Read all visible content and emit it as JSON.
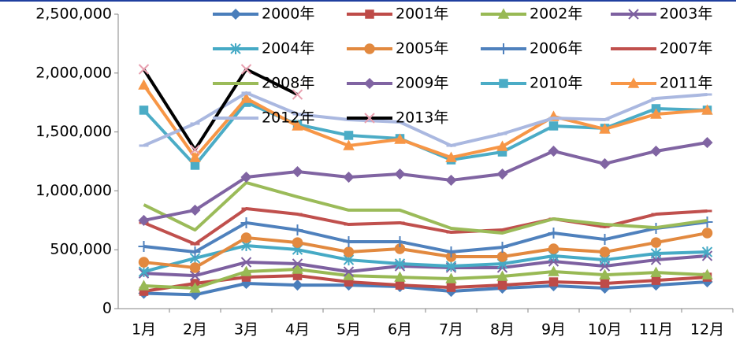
{
  "chart_data": {
    "type": "line",
    "categories": [
      "1月",
      "2月",
      "3月",
      "4月",
      "5月",
      "6月",
      "7月",
      "8月",
      "9月",
      "10月",
      "11月",
      "12月"
    ],
    "ylim": [
      0,
      2500000
    ],
    "yticks": [
      0,
      {
        "value": 500000,
        "label": "500,000"
      },
      {
        "value": 1000000,
        "label": "1,000,000"
      },
      {
        "value": 1500000,
        "label": "1,500,000"
      },
      {
        "value": 2000000,
        "label": "2,000,000"
      },
      {
        "value": 2500000,
        "label": "2,500,000"
      }
    ],
    "legend": "upper right",
    "series": [
      {
        "name": "2000年",
        "color": "#4a7ebb",
        "marker": "diamond",
        "values": [
          130000,
          118000,
          214000,
          200000,
          200000,
          187000,
          147000,
          174000,
          194000,
          174000,
          200000,
          227000
        ]
      },
      {
        "name": "2001年",
        "color": "#be4b48",
        "marker": "square",
        "values": [
          147000,
          214000,
          267000,
          280000,
          227000,
          200000,
          180000,
          200000,
          227000,
          214000,
          240000,
          267000
        ]
      },
      {
        "name": "2002年",
        "color": "#98b954",
        "marker": "triangle",
        "values": [
          194000,
          174000,
          314000,
          334000,
          280000,
          267000,
          254000,
          274000,
          314000,
          287000,
          307000,
          287000
        ]
      },
      {
        "name": "2003年",
        "color": "#7d60a0",
        "marker": "x",
        "values": [
          300000,
          280000,
          394000,
          381000,
          314000,
          361000,
          348000,
          348000,
          401000,
          361000,
          414000,
          448000
        ]
      },
      {
        "name": "2004年",
        "color": "#46aac5",
        "marker": "star",
        "values": [
          314000,
          428000,
          535000,
          501000,
          414000,
          381000,
          361000,
          381000,
          448000,
          414000,
          468000,
          481000
        ]
      },
      {
        "name": "2005年",
        "color": "#e2893f",
        "marker": "circle",
        "values": [
          394000,
          348000,
          602000,
          561000,
          481000,
          508000,
          441000,
          441000,
          508000,
          481000,
          561000,
          642000
        ]
      },
      {
        "name": "2006年",
        "color": "#4f81bd",
        "marker": "plus",
        "values": [
          528000,
          481000,
          729000,
          668000,
          568000,
          568000,
          481000,
          521000,
          642000,
          588000,
          682000,
          735000
        ]
      },
      {
        "name": "2007年",
        "color": "#c0504d",
        "marker": "dash",
        "values": [
          729000,
          548000,
          849000,
          802000,
          715000,
          729000,
          648000,
          668000,
          762000,
          695000,
          802000,
          829000
        ]
      },
      {
        "name": "2008年",
        "color": "#9bbb59",
        "marker": "none",
        "values": [
          882000,
          668000,
          1070000,
          949000,
          836000,
          836000,
          682000,
          642000,
          762000,
          715000,
          688000,
          749000
        ]
      },
      {
        "name": "2009年",
        "color": "#8064a2",
        "marker": "diamond",
        "values": [
          749000,
          836000,
          1116000,
          1163000,
          1116000,
          1143000,
          1090000,
          1143000,
          1337000,
          1230000,
          1337000,
          1410000
        ]
      },
      {
        "name": "2010年",
        "color": "#4bacc6",
        "marker": "square",
        "values": [
          1685000,
          1217000,
          1751000,
          1564000,
          1471000,
          1444000,
          1263000,
          1330000,
          1551000,
          1531000,
          1698000,
          1685000
        ]
      },
      {
        "name": "2011年",
        "color": "#f79646",
        "marker": "triangle",
        "values": [
          1898000,
          1283000,
          1785000,
          1551000,
          1384000,
          1437000,
          1283000,
          1377000,
          1631000,
          1524000,
          1651000,
          1685000
        ]
      },
      {
        "name": "2012年",
        "color": "#aab8e0",
        "marker": "dash",
        "values": [
          1384000,
          1571000,
          1832000,
          1651000,
          1604000,
          1584000,
          1384000,
          1484000,
          1618000,
          1604000,
          1785000,
          1818000
        ]
      },
      {
        "name": "2013年",
        "color": "#000000",
        "marker": "x",
        "values": [
          2032000,
          1350000,
          2032000,
          1818000,
          null,
          null,
          null,
          null,
          null,
          null,
          null,
          null
        ]
      }
    ]
  }
}
